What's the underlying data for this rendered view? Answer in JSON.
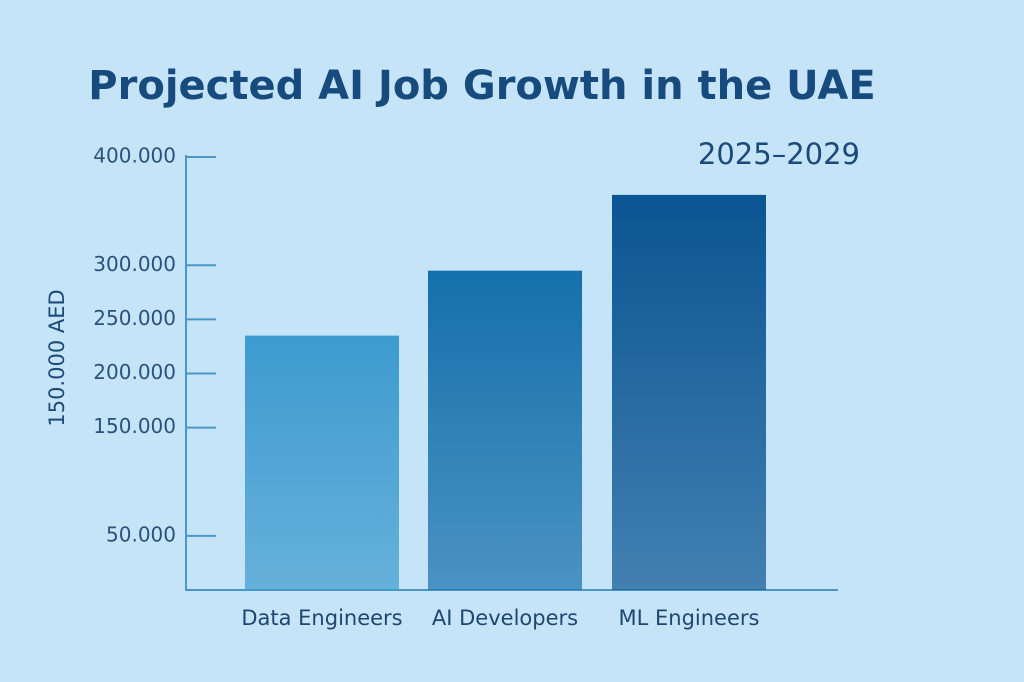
{
  "chart_data": {
    "type": "bar",
    "title": "Projected AI Job Growth in the UAE",
    "subtitle": "2025–2029",
    "y_label": "150.000 AED",
    "categories": [
      "Data Engineers",
      "AI Developers",
      "ML Engineers"
    ],
    "values": [
      235000,
      295000,
      365000
    ],
    "colors": [
      "#3d9bcf",
      "#1570ab",
      "#0a5592"
    ],
    "ylim": [
      0,
      400000
    ],
    "yticks": [
      {
        "value": 400000,
        "label": "400.000"
      },
      {
        "value": 300000,
        "label": "300.000"
      },
      {
        "value": 250000,
        "label": "250.000"
      },
      {
        "value": 200000,
        "label": "200.000"
      },
      {
        "value": 150000,
        "label": "150.000"
      },
      {
        "value": 50000,
        "label": "50.000"
      }
    ]
  }
}
